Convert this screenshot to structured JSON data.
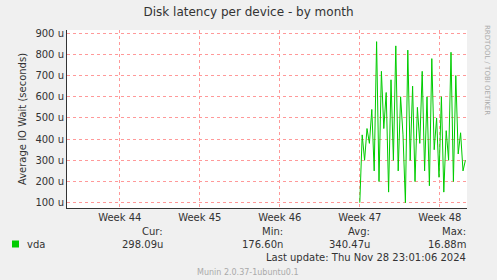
{
  "chart_data": {
    "type": "line",
    "title": "Disk latency per device - by month",
    "y_label": "Average IO Wait (seconds)",
    "x": [
      47.5,
      47.53,
      47.56,
      47.59,
      47.62,
      47.65,
      47.68,
      47.71,
      47.74,
      47.77,
      47.8,
      47.83,
      47.86,
      47.89,
      47.92,
      47.95,
      47.98,
      48.01,
      48.04,
      48.07,
      48.1,
      48.13,
      48.16,
      48.19,
      48.22,
      48.25,
      48.28,
      48.31,
      48.34,
      48.37,
      48.4,
      48.43,
      48.46,
      48.49,
      48.52,
      48.55,
      48.58,
      48.61,
      48.64,
      48.67,
      48.7,
      48.73,
      48.76,
      48.79,
      48.82
    ],
    "series": [
      {
        "name": "vda",
        "color": "#00cc00",
        "values": [
          0.0001,
          0.00042,
          0.0003,
          0.00045,
          0.00038,
          0.00054,
          0.00025,
          0.00086,
          0.0002,
          0.00072,
          0.00045,
          0.00062,
          0.00015,
          0.00068,
          0.0003,
          0.00084,
          0.00025,
          0.0006,
          0.00042,
          0.0001,
          0.00082,
          0.0003,
          0.00065,
          0.0002,
          0.00055,
          0.00038,
          0.00072,
          0.00025,
          0.0006,
          0.00018,
          0.00078,
          0.00035,
          0.0005,
          0.00022,
          0.0006,
          0.00015,
          0.00044,
          0.0003,
          0.00081,
          0.0002,
          0.0007,
          0.00033,
          0.00043,
          0.00025,
          0.0003
        ]
      }
    ],
    "xlim": [
      43.84,
      48.84
    ],
    "xticks": [
      {
        "value": 44.5,
        "label": "Week 44"
      },
      {
        "value": 45.5,
        "label": "Week 45"
      },
      {
        "value": 46.5,
        "label": "Week 46"
      },
      {
        "value": 47.5,
        "label": "Week 47"
      },
      {
        "value": 48.5,
        "label": "Week 48"
      }
    ],
    "ylim": [
      7.5e-05,
      0.000915
    ],
    "yticks": [
      {
        "value": 0.0001,
        "label": "100 u"
      },
      {
        "value": 0.0002,
        "label": "200 u"
      },
      {
        "value": 0.0003,
        "label": "300 u"
      },
      {
        "value": 0.0004,
        "label": "400 u"
      },
      {
        "value": 0.0005,
        "label": "500 u"
      },
      {
        "value": 0.0006,
        "label": "600 u"
      },
      {
        "value": 0.0007,
        "label": "700 u"
      },
      {
        "value": 0.0008,
        "label": "800 u"
      },
      {
        "value": 0.0009,
        "label": "900 u"
      }
    ],
    "grid": true,
    "stats_headers": [
      "Cur:",
      "Min:",
      "Avg:",
      "Max:"
    ],
    "stats_values": [
      "298.09u",
      "176.60n",
      "340.47u",
      "16.88m"
    ],
    "last_update": "Last update: Thu Nov 28 23:01:06 2024",
    "footer": "Munin 2.0.37-1ubuntu0.1",
    "side_text": "RRDTOOL / TOBI OETIKER"
  }
}
